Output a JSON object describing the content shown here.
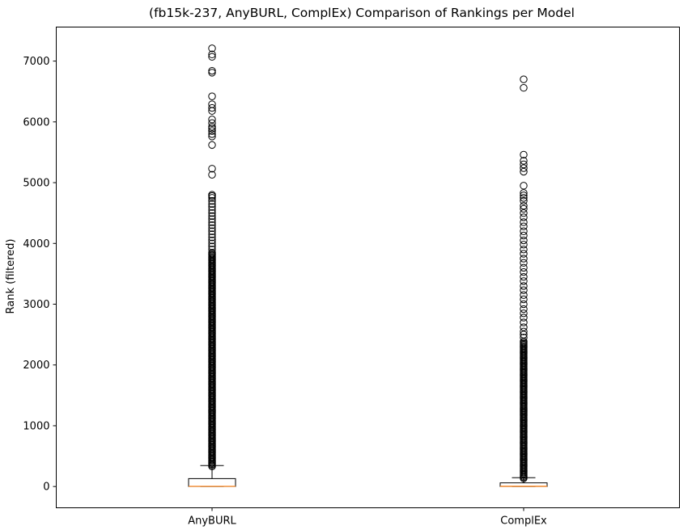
{
  "chart_data": {
    "type": "box",
    "title": "(fb15k-237, AnyBURL, ComplEx) Comparison of Rankings per Model",
    "xlabel": "",
    "ylabel": "Rank (filtered)",
    "ylim": [
      -350,
      7560
    ],
    "yticks": [
      0,
      1000,
      2000,
      3000,
      4000,
      5000,
      6000,
      7000
    ],
    "grid": false,
    "categories": [
      "AnyBURL",
      "ComplEx"
    ],
    "boxes": [
      {
        "name": "AnyBURL",
        "whisker_low": 1,
        "q1": 1,
        "median": 3,
        "q3": 130,
        "whisker_high": 345,
        "outlier_dense_range": [
          330,
          3850
        ],
        "outliers": [
          3900,
          3950,
          4000,
          4050,
          4100,
          4150,
          4200,
          4250,
          4300,
          4350,
          4400,
          4450,
          4500,
          4550,
          4600,
          4650,
          4700,
          4750,
          4780,
          4800,
          5130,
          5230,
          5620,
          5760,
          5800,
          5850,
          5890,
          5920,
          5980,
          6040,
          6180,
          6230,
          6290,
          6420,
          6810,
          6840,
          7070,
          7110,
          7210
        ]
      },
      {
        "name": "ComplEx",
        "whisker_low": 1,
        "q1": 1,
        "median": 4,
        "q3": 60,
        "whisker_high": 145,
        "outlier_dense_range": [
          135,
          2400
        ],
        "outliers": [
          2450,
          2500,
          2550,
          2620,
          2700,
          2780,
          2850,
          2920,
          3000,
          3080,
          3150,
          3230,
          3300,
          3380,
          3450,
          3530,
          3600,
          3680,
          3750,
          3830,
          3900,
          3980,
          4050,
          4130,
          4200,
          4280,
          4350,
          4430,
          4500,
          4570,
          4620,
          4700,
          4750,
          4790,
          4830,
          4950,
          5180,
          5240,
          5300,
          5360,
          5460,
          6560,
          6700
        ]
      }
    ]
  }
}
